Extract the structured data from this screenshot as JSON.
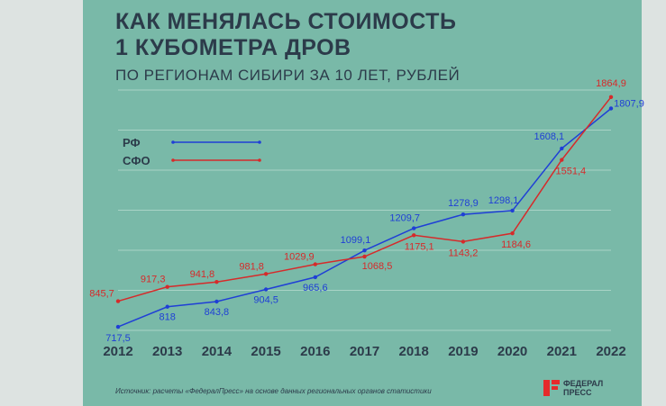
{
  "title_line1": "КАК МЕНЯЛАСЬ СТОИМОСТЬ",
  "title_line2": "1 КУБОМЕТРА ДРОВ",
  "subtitle": "ПО РЕГИОНАМ СИБИРИ ЗА 10 ЛЕТ, РУБЛЕЙ",
  "source": "Источник: расчеты «ФедералПресс» на основе данных региональных органов статистики",
  "logo": {
    "line1": "ФЕДЕРАЛ",
    "line2": "ПРЕСС"
  },
  "colors": {
    "background": "#79b9a8",
    "text": "#2c3b4a",
    "rf": "#1f3fd6",
    "sfo": "#d62a2a",
    "logo_red": "#e52b2b"
  },
  "chart_data": {
    "type": "line",
    "title": "КАК МЕНЯЛАСЬ СТОИМОСТЬ 1 КУБОМЕТРА ДРОВ",
    "subtitle": "ПО РЕГИОНАМ СИБИРИ ЗА 10 ЛЕТ, РУБЛЕЙ",
    "categories": [
      "2012",
      "2013",
      "2014",
      "2015",
      "2016",
      "2017",
      "2018",
      "2019",
      "2020",
      "2021",
      "2022"
    ],
    "ylim": [
      700,
      1900
    ],
    "grid": true,
    "legend_position": "top-left",
    "series": [
      {
        "name": "РФ",
        "color": "#1f3fd6",
        "values": [
          717.5,
          818,
          843.8,
          904.5,
          965.6,
          1099.1,
          1209.7,
          1278.9,
          1298.1,
          1608.1,
          1807.9
        ],
        "labels": [
          "717,5",
          "818",
          "843,8",
          "904,5",
          "965,6",
          "1099,1",
          "1209,7",
          "1278,9",
          "1298,1",
          "1608,1",
          "1807,9"
        ]
      },
      {
        "name": "СФО",
        "color": "#d62a2a",
        "values": [
          845.7,
          917.3,
          941.8,
          981.8,
          1029.9,
          1068.5,
          1175.1,
          1143.2,
          1184.6,
          1551.4,
          1864.9
        ],
        "labels": [
          "845,7",
          "917,3",
          "941,8",
          "981,8",
          "1029,9",
          "1068,5",
          "1175,1",
          "1143,2",
          "1184,6",
          "1551,4",
          "1864,9"
        ]
      }
    ]
  }
}
